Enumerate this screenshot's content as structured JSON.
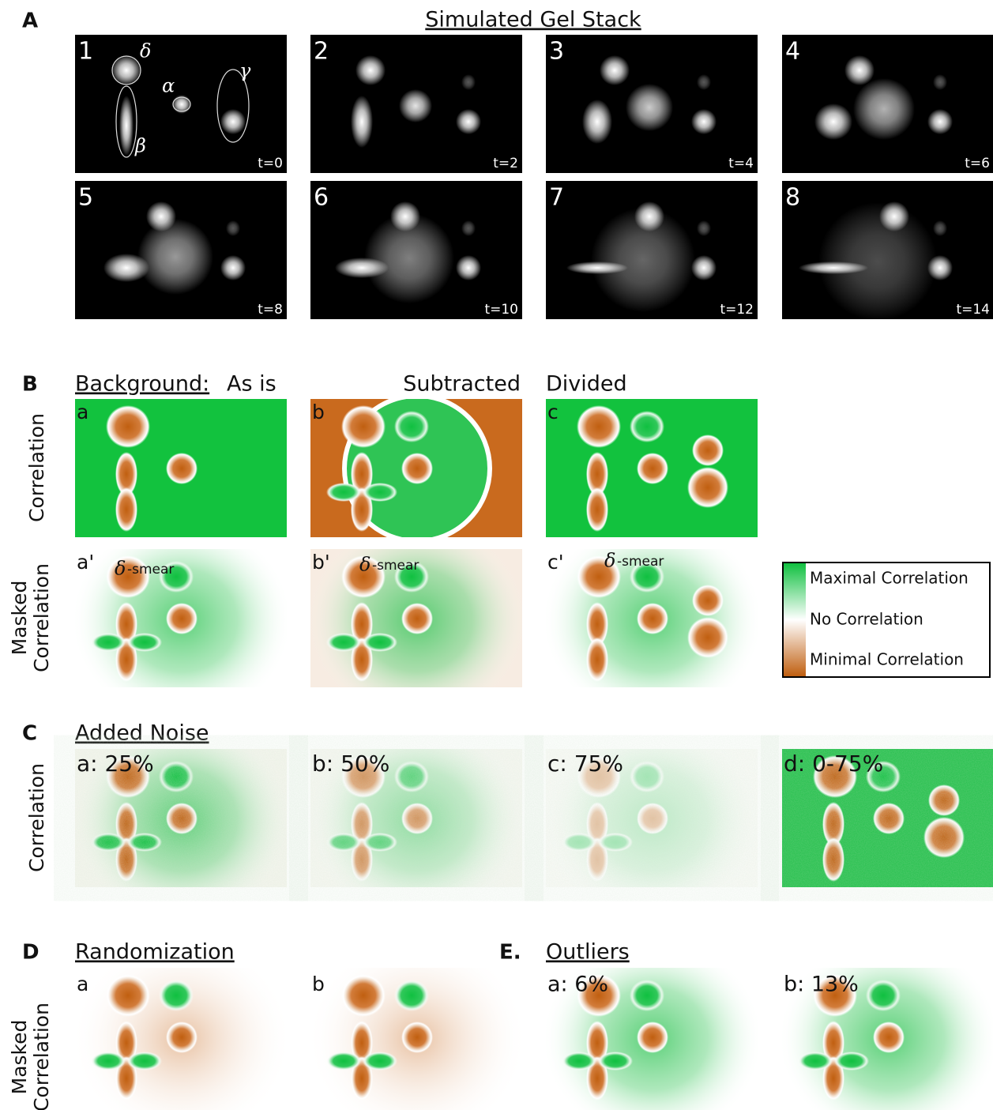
{
  "panel_a": {
    "letter": "A",
    "title": "Simulated Gel Stack",
    "frames": [
      {
        "index": "1",
        "time": "t=0"
      },
      {
        "index": "2",
        "time": "t=2"
      },
      {
        "index": "3",
        "time": "t=4"
      },
      {
        "index": "4",
        "time": "t=6"
      },
      {
        "index": "5",
        "time": "t=8"
      },
      {
        "index": "6",
        "time": "t=10"
      },
      {
        "index": "7",
        "time": "t=12"
      },
      {
        "index": "8",
        "time": "t=14"
      }
    ],
    "spot_labels": {
      "delta": "δ",
      "alpha": "α",
      "gamma": "γ",
      "beta": "β"
    }
  },
  "panel_b": {
    "letter": "B",
    "background_label": "Background:",
    "columns": [
      "As is",
      "Subtracted",
      "Divided"
    ],
    "row_labels": {
      "correlation": "Correlation",
      "masked": [
        "Masked",
        "Correlation"
      ]
    },
    "sublabels": [
      "a",
      "b",
      "c"
    ],
    "masked_sublabels": [
      "a'",
      "b'",
      "c'"
    ],
    "smear_symbol": "δ",
    "smear_text": "-smear"
  },
  "legend": [
    "Maximal Correlation",
    "No Correlation",
    "Minimal Correlation"
  ],
  "panel_c": {
    "letter": "C",
    "title": "Added Noise",
    "row_label": "Correlation",
    "panels": [
      "a: 25%",
      "b: 50%",
      "c: 75%",
      "d: 0-75%"
    ]
  },
  "panel_d": {
    "letter": "D",
    "title": "Randomization",
    "row_label": [
      "Masked",
      "Correlation"
    ],
    "panels": [
      "a",
      "b"
    ]
  },
  "panel_e": {
    "letter": "E.",
    "title": "Outliers",
    "panels": [
      "a: 6%",
      "b: 13%"
    ]
  }
}
